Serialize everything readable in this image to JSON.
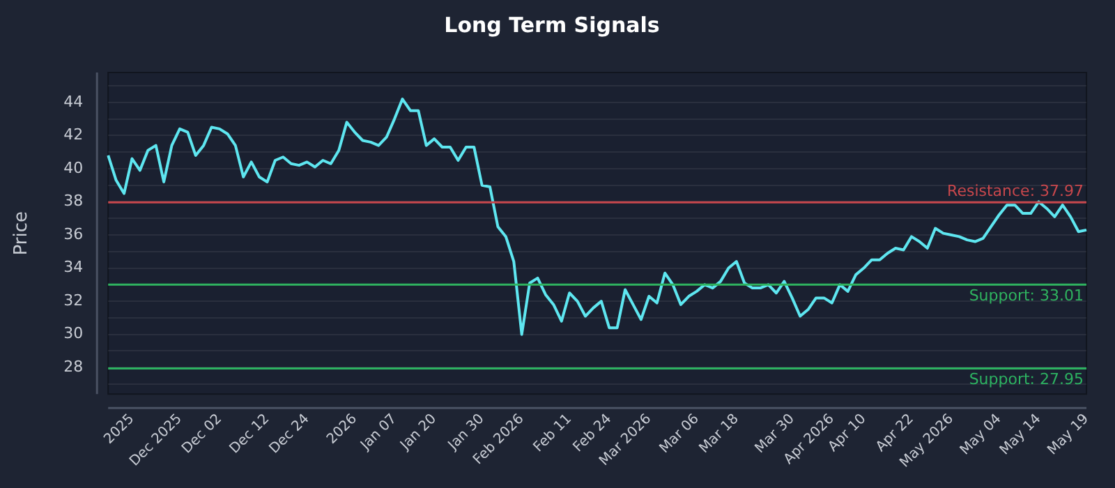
{
  "chart_data": {
    "type": "line",
    "title": "Long Term Signals",
    "ylabel": "Price",
    "categories": [
      null,
      null,
      null,
      "2025",
      null,
      null,
      null,
      null,
      null,
      "Dec 2025",
      null,
      null,
      null,
      null,
      "Dec 02",
      null,
      null,
      null,
      null,
      null,
      "Dec 12",
      null,
      null,
      null,
      null,
      "Dec 24",
      null,
      null,
      null,
      null,
      null,
      "2026",
      null,
      null,
      null,
      null,
      "Jan 07",
      null,
      null,
      null,
      null,
      "Jan 20",
      null,
      null,
      null,
      null,
      null,
      "Jan 30",
      null,
      null,
      null,
      null,
      "Feb 2026",
      null,
      null,
      null,
      null,
      null,
      "Feb 11",
      null,
      null,
      null,
      null,
      "Feb 24",
      null,
      null,
      null,
      null,
      "Mar 2026",
      null,
      null,
      null,
      null,
      null,
      "Mar 06",
      null,
      null,
      null,
      null,
      "Mar 18",
      null,
      null,
      null,
      null,
      null,
      null,
      "Mar 30",
      null,
      null,
      null,
      null,
      "Apr 2026",
      null,
      null,
      null,
      "Apr 10",
      null,
      null,
      null,
      null,
      null,
      "Apr 22",
      null,
      null,
      null,
      null,
      "May 2026",
      null,
      null,
      null,
      null,
      null,
      "May 04",
      null,
      null,
      null,
      null,
      "May 14",
      null,
      null,
      null,
      null,
      null,
      "May 19"
    ],
    "series": [
      {
        "color": "#5ee6f0",
        "values": [
          40.8,
          39.3,
          38.5,
          40.6,
          39.9,
          41.1,
          41.4,
          39.2,
          41.4,
          42.4,
          42.2,
          40.8,
          41.4,
          42.5,
          42.4,
          42.1,
          41.4,
          39.5,
          40.4,
          39.5,
          39.2,
          40.5,
          40.7,
          40.3,
          40.2,
          40.4,
          40.1,
          40.5,
          40.3,
          41.1,
          42.8,
          42.2,
          41.7,
          41.6,
          41.4,
          41.9,
          43.0,
          44.2,
          43.5,
          43.5,
          41.4,
          41.8,
          41.3,
          41.3,
          40.5,
          41.3,
          41.3,
          39.0,
          38.9,
          36.5,
          35.9,
          34.4,
          30.0,
          33.1,
          33.4,
          32.4,
          31.8,
          30.8,
          32.5,
          32.0,
          31.1,
          31.6,
          32.0,
          30.4,
          30.4,
          32.7,
          31.8,
          30.9,
          32.3,
          31.9,
          33.7,
          33.0,
          31.8,
          32.3,
          32.6,
          33.0,
          32.8,
          33.2,
          34.0,
          34.4,
          33.1,
          32.8,
          32.8,
          33.0,
          32.5,
          33.2,
          32.2,
          31.1,
          31.5,
          32.2,
          32.2,
          31.9,
          33.0,
          32.6,
          33.6,
          34.0,
          34.5,
          34.5,
          34.9,
          35.2,
          35.1,
          35.9,
          35.6,
          35.2,
          36.4,
          36.1,
          36.0,
          35.9,
          35.7,
          35.6,
          35.8,
          36.5,
          37.2,
          37.8,
          37.8,
          37.3,
          37.3,
          38.0,
          37.6,
          37.1,
          37.8,
          37.1,
          36.2,
          36.3
        ]
      }
    ],
    "ylim": [
      26.4,
      45.8
    ],
    "yticks": [
      {
        "value": 27,
        "label": null
      },
      28,
      {
        "value": 29,
        "label": null
      },
      30,
      {
        "value": 31,
        "label": null
      },
      32,
      {
        "value": 33,
        "label": null
      },
      34,
      {
        "value": 35,
        "label": null
      },
      36,
      {
        "value": 37,
        "label": null
      },
      38,
      {
        "value": 39,
        "label": null
      },
      40,
      {
        "value": 41,
        "label": null
      },
      42,
      {
        "value": 43,
        "label": null
      },
      44,
      {
        "value": 45,
        "label": null
      }
    ],
    "grid": "y",
    "legend": false,
    "marker": "none",
    "line_style": "solid",
    "ref_lines": [
      {
        "axis": "y",
        "value": 37.97,
        "label": "Resistance: 37.97",
        "color": "#c8474c"
      },
      {
        "axis": "y",
        "value": 33.01,
        "label": "Support: 33.01",
        "color": "#2fb35f"
      },
      {
        "axis": "y",
        "value": 27.95,
        "label": "Support: 27.95",
        "color": "#2db261"
      }
    ]
  }
}
